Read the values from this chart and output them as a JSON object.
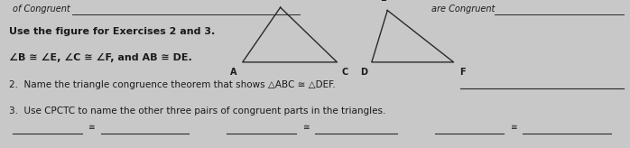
{
  "bg_color": "#c8c8c8",
  "title_line1": "Use the figure for Exercises 2 and 3.",
  "title_line2": "∠B ≅ ∠E, ∠C ≅ ∠F, and AB ≅ DE.",
  "text_item2": "2.  Name the triangle congruence theorem that shows △ABC ≅ △DEF.",
  "text_item3": "3.  Use CPCTC to name the other three pairs of congruent parts in the triangles.",
  "header_left": "of Congruent",
  "header_right": "are Congruent",
  "tri1": {
    "B": [
      0.445,
      0.95
    ],
    "A": [
      0.385,
      0.58
    ],
    "C": [
      0.535,
      0.58
    ],
    "labels": {
      "B": [
        0.438,
        1.0
      ],
      "A": [
        0.37,
        0.54
      ],
      "C": [
        0.548,
        0.54
      ]
    }
  },
  "tri2": {
    "E": [
      0.615,
      0.93
    ],
    "D": [
      0.59,
      0.58
    ],
    "F": [
      0.72,
      0.58
    ],
    "labels": {
      "E": [
        0.608,
        0.98
      ],
      "D": [
        0.577,
        0.54
      ],
      "F": [
        0.734,
        0.54
      ]
    }
  },
  "font_size_main": 7.5,
  "font_size_labels": 7.0,
  "font_size_header": 7.0,
  "line_color": "#2a2a2a",
  "text_color": "#1a1a1a"
}
